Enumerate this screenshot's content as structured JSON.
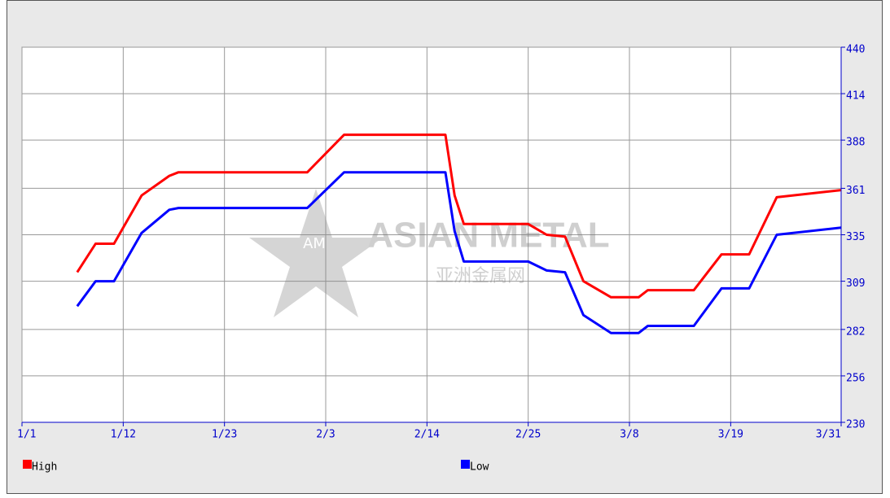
{
  "chart_data": {
    "type": "line",
    "x": [
      "1/7",
      "1/9",
      "1/11",
      "1/14",
      "1/17",
      "1/18",
      "2/1",
      "2/5",
      "2/16",
      "2/17",
      "2/18",
      "2/25",
      "2/27",
      "3/1",
      "3/3",
      "3/6",
      "3/9",
      "3/10",
      "3/15",
      "3/18",
      "3/21",
      "3/24",
      "3/31"
    ],
    "series": [
      {
        "name": "High",
        "color": "#ff0000",
        "values": [
          314,
          330,
          330,
          357,
          368,
          370,
          370,
          391,
          391,
          357,
          341,
          341,
          335,
          334,
          309,
          300,
          300,
          304,
          304,
          324,
          324,
          356,
          360
        ]
      },
      {
        "name": "Low",
        "color": "#0000ff",
        "values": [
          295,
          309,
          309,
          336,
          349,
          350,
          350,
          370,
          370,
          337,
          320,
          320,
          315,
          314,
          290,
          280,
          280,
          284,
          284,
          305,
          305,
          335,
          339
        ]
      }
    ],
    "xlim": [
      "1/1",
      "3/31"
    ],
    "xticks": [
      "1/1",
      "1/12",
      "1/23",
      "2/3",
      "2/14",
      "2/25",
      "3/8",
      "3/19",
      "3/31"
    ],
    "ylim": [
      230,
      440
    ],
    "yticks": [
      230,
      256,
      282,
      309,
      335,
      361,
      388,
      414,
      440
    ],
    "grid": true,
    "watermark": {
      "logo": "AM",
      "name": "ASIAN METAL",
      "subname": "亚洲金属网"
    }
  }
}
